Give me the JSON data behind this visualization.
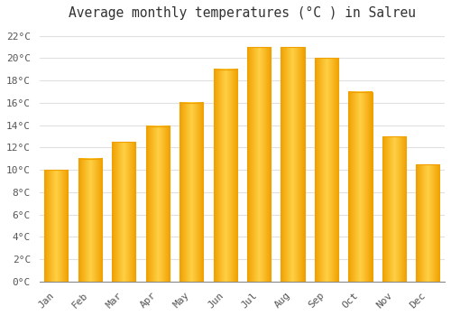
{
  "title": "Average monthly temperatures (°C ) in Salreu",
  "months": [
    "Jan",
    "Feb",
    "Mar",
    "Apr",
    "May",
    "Jun",
    "Jul",
    "Aug",
    "Sep",
    "Oct",
    "Nov",
    "Dec"
  ],
  "values": [
    10.0,
    11.0,
    12.5,
    13.9,
    16.0,
    19.0,
    21.0,
    21.0,
    20.0,
    17.0,
    13.0,
    10.5
  ],
  "bar_color_center": "#FFD045",
  "bar_color_edge": "#F0A000",
  "background_color": "#FFFFFF",
  "grid_color": "#E0E0E0",
  "ylim": [
    0,
    23
  ],
  "yticks": [
    0,
    2,
    4,
    6,
    8,
    10,
    12,
    14,
    16,
    18,
    20,
    22
  ],
  "ytick_labels": [
    "0°C",
    "2°C",
    "4°C",
    "6°C",
    "8°C",
    "10°C",
    "12°C",
    "14°C",
    "16°C",
    "18°C",
    "20°C",
    "22°C"
  ],
  "title_fontsize": 10.5,
  "tick_fontsize": 8,
  "font_family": "monospace",
  "bar_width": 0.7
}
